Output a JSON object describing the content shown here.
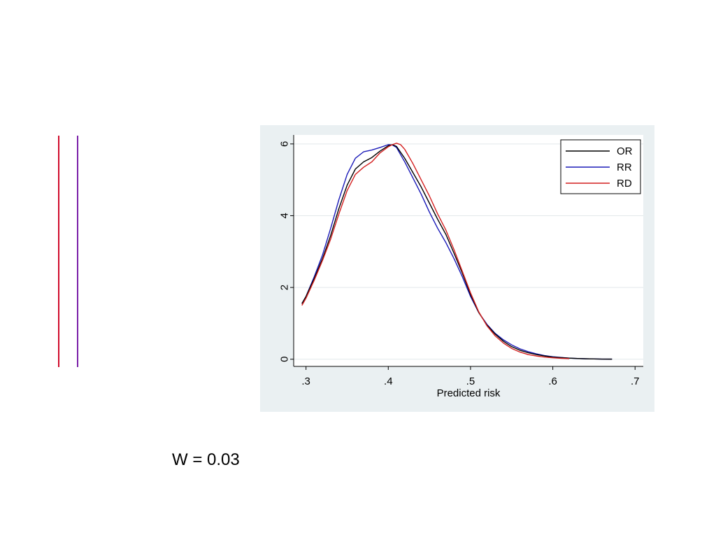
{
  "chart_data": {
    "type": "line",
    "title": "",
    "xlabel": "Predicted risk",
    "ylabel": "",
    "xlim": [
      0.285,
      0.71
    ],
    "ylim": [
      -0.2,
      6.25
    ],
    "xticks": [
      0.3,
      0.4,
      0.5,
      0.6,
      0.7
    ],
    "xtick_labels": [
      ".3",
      ".4",
      ".5",
      ".6",
      ".7"
    ],
    "yticks": [
      0,
      2,
      4,
      6
    ],
    "ytick_labels": [
      "0",
      "2",
      "4",
      "6"
    ],
    "grid": true,
    "legend_position": "top-right",
    "series": [
      {
        "name": "OR",
        "color": "#000000",
        "x": [
          0.295,
          0.3,
          0.31,
          0.32,
          0.33,
          0.34,
          0.35,
          0.36,
          0.37,
          0.38,
          0.39,
          0.4,
          0.405,
          0.41,
          0.42,
          0.43,
          0.44,
          0.45,
          0.46,
          0.47,
          0.48,
          0.49,
          0.5,
          0.51,
          0.52,
          0.53,
          0.54,
          0.55,
          0.56,
          0.57,
          0.58,
          0.59,
          0.6,
          0.61,
          0.62,
          0.63,
          0.64,
          0.65,
          0.66,
          0.672
        ],
        "y": [
          1.55,
          1.75,
          2.25,
          2.8,
          3.45,
          4.2,
          4.85,
          5.3,
          5.5,
          5.62,
          5.8,
          5.95,
          5.98,
          5.93,
          5.6,
          5.2,
          4.8,
          4.35,
          3.9,
          3.48,
          2.95,
          2.4,
          1.8,
          1.3,
          0.95,
          0.7,
          0.5,
          0.35,
          0.25,
          0.18,
          0.13,
          0.09,
          0.06,
          0.045,
          0.03,
          0.02,
          0.012,
          0.008,
          0.004,
          0.002
        ]
      },
      {
        "name": "RR",
        "color": "#1a1ab8",
        "x": [
          0.295,
          0.3,
          0.31,
          0.32,
          0.33,
          0.34,
          0.35,
          0.36,
          0.37,
          0.38,
          0.39,
          0.4,
          0.405,
          0.41,
          0.42,
          0.43,
          0.44,
          0.45,
          0.46,
          0.47,
          0.48,
          0.49,
          0.5,
          0.51,
          0.52,
          0.53,
          0.54,
          0.55,
          0.56,
          0.57,
          0.58,
          0.59,
          0.6,
          0.61,
          0.62,
          0.63,
          0.64,
          0.65,
          0.66,
          0.672
        ],
        "y": [
          1.55,
          1.75,
          2.3,
          2.9,
          3.65,
          4.45,
          5.15,
          5.6,
          5.78,
          5.83,
          5.9,
          5.98,
          5.97,
          5.9,
          5.5,
          5.05,
          4.6,
          4.1,
          3.65,
          3.25,
          2.8,
          2.3,
          1.75,
          1.3,
          0.97,
          0.72,
          0.54,
          0.4,
          0.29,
          0.21,
          0.15,
          0.1,
          0.07,
          0.05,
          0.03,
          0.02,
          0.012,
          0.008,
          0.004,
          0.002
        ]
      },
      {
        "name": "RD",
        "color": "#d41f1f",
        "x": [
          0.295,
          0.3,
          0.31,
          0.32,
          0.33,
          0.34,
          0.35,
          0.36,
          0.37,
          0.38,
          0.39,
          0.4,
          0.405,
          0.41,
          0.415,
          0.42,
          0.43,
          0.44,
          0.45,
          0.46,
          0.47,
          0.48,
          0.49,
          0.5,
          0.51,
          0.52,
          0.53,
          0.54,
          0.55,
          0.56,
          0.57,
          0.58,
          0.59,
          0.6,
          0.61,
          0.62
        ],
        "y": [
          1.5,
          1.7,
          2.2,
          2.75,
          3.35,
          4.05,
          4.7,
          5.15,
          5.35,
          5.5,
          5.75,
          5.92,
          5.98,
          6.02,
          5.98,
          5.85,
          5.45,
          5.0,
          4.55,
          4.05,
          3.6,
          3.05,
          2.45,
          1.85,
          1.32,
          0.93,
          0.65,
          0.45,
          0.3,
          0.2,
          0.13,
          0.09,
          0.06,
          0.04,
          0.025,
          0.015
        ]
      }
    ]
  },
  "annotation": {
    "text": "W = 0.03"
  },
  "colors": {
    "plot_region_bg": "#eaf0f2",
    "plot_area_bg": "#ffffff",
    "gridline": "#e2e8ea",
    "side_line_outer": "#d00a2a",
    "side_line_inner": "#7a1fa8"
  }
}
